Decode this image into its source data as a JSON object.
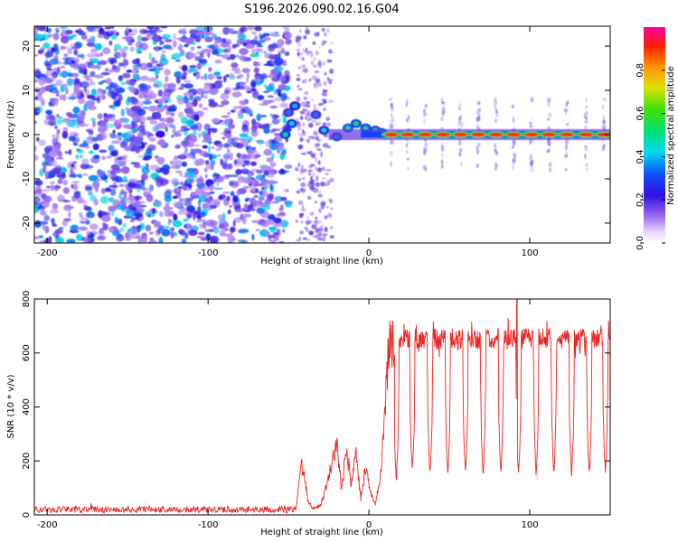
{
  "figure_title": "S196.2026.090.02.16.G04",
  "chart_data": [
    {
      "type": "heatmap",
      "xlabel": "Height of straight line (km)",
      "ylabel": "Frequency (Hz)",
      "xlim": [
        -208,
        150
      ],
      "ylim": [
        -24.5,
        24.5
      ],
      "xticks": [
        -200,
        -100,
        0,
        100
      ],
      "yticks": [
        -20,
        -10,
        0,
        10,
        20
      ],
      "colorbar": {
        "label": "Normalized spectral amplitude",
        "range": [
          0.0,
          1.0
        ],
        "ticks": [
          0.0,
          0.2,
          0.4,
          0.6,
          0.8
        ],
        "tick_labels": [
          "0.0",
          "0.2",
          "0.4",
          "0.6",
          "0.8"
        ],
        "colormap": "rainbow: white → violet → blue → cyan → green → yellow → orange → red → magenta"
      },
      "signal_line": {
        "frequency_hz": 0,
        "start_km": -25,
        "end_km": 150,
        "pulse_centers_km": [
          14,
          24,
          35,
          46,
          57,
          68,
          79,
          90,
          101,
          112,
          123,
          135,
          146
        ],
        "pulse_amplitude": 0.9
      },
      "noise_region": {
        "x_range": [
          -208,
          -50
        ],
        "y_range": [
          -24.5,
          24.5
        ],
        "amplitude": [
          0.1,
          0.45
        ]
      },
      "transition_features": [
        {
          "x": -50,
          "y": 5,
          "v": 0.35
        },
        {
          "x": -48,
          "y": 2.5,
          "v": 0.45
        },
        {
          "x": -52,
          "y": 0,
          "v": 0.5
        },
        {
          "x": -46,
          "y": 6.5,
          "v": 0.4
        },
        {
          "x": -33,
          "y": 4.5,
          "v": 0.35
        },
        {
          "x": -28,
          "y": 1,
          "v": 0.45
        },
        {
          "x": -20,
          "y": -0.5,
          "v": 0.5
        },
        {
          "x": -13,
          "y": 1.5,
          "v": 0.55
        },
        {
          "x": -8,
          "y": 2.5,
          "v": 0.55
        },
        {
          "x": -2,
          "y": 1.5,
          "v": 0.5
        },
        {
          "x": 4,
          "y": 1.0,
          "v": 0.5
        },
        {
          "x": 8,
          "y": 0.5,
          "v": 0.55
        }
      ],
      "grid": false
    },
    {
      "type": "line",
      "xlabel": "Height of straight line (km)",
      "ylabel": "SNR (10 * v/v)",
      "xlim": [
        -208,
        150
      ],
      "ylim": [
        0,
        800
      ],
      "xticks": [
        -200,
        -100,
        0,
        100
      ],
      "yticks": [
        0,
        200,
        400,
        600,
        800
      ],
      "line_color": "#ee2222",
      "grid": false,
      "baseline_segment": {
        "x_range": [
          -208,
          -45
        ],
        "snr_mean": 20,
        "snr_noise": 12
      },
      "series_profile": [
        {
          "x": -208,
          "y": 20
        },
        {
          "x": -45,
          "y": 20
        },
        {
          "x": -42,
          "y": 180
        },
        {
          "x": -40,
          "y": 150
        },
        {
          "x": -38,
          "y": 50
        },
        {
          "x": -35,
          "y": 25
        },
        {
          "x": -30,
          "y": 35
        },
        {
          "x": -26,
          "y": 120
        },
        {
          "x": -23,
          "y": 200
        },
        {
          "x": -20,
          "y": 270
        },
        {
          "x": -17,
          "y": 90
        },
        {
          "x": -14,
          "y": 240
        },
        {
          "x": -11,
          "y": 120
        },
        {
          "x": -8,
          "y": 230
        },
        {
          "x": -5,
          "y": 60
        },
        {
          "x": -2,
          "y": 180
        },
        {
          "x": 1,
          "y": 80
        },
        {
          "x": 4,
          "y": 40
        },
        {
          "x": 7,
          "y": 140
        },
        {
          "x": 10,
          "y": 380
        },
        {
          "x": 12,
          "y": 620
        },
        {
          "x": 16,
          "y": 640
        }
      ],
      "plateau": {
        "x_range": [
          16,
          150
        ],
        "snr_mean": 650,
        "snr_noise": 40
      },
      "dips": [
        {
          "x": 17,
          "y": 120
        },
        {
          "x": 27,
          "y": 160
        },
        {
          "x": 38,
          "y": 150
        },
        {
          "x": 49,
          "y": 150
        },
        {
          "x": 60,
          "y": 150
        },
        {
          "x": 71,
          "y": 150
        },
        {
          "x": 82,
          "y": 150
        },
        {
          "x": 93,
          "y": 150
        },
        {
          "x": 104,
          "y": 150
        },
        {
          "x": 115,
          "y": 150
        },
        {
          "x": 126,
          "y": 150
        },
        {
          "x": 137,
          "y": 150
        },
        {
          "x": 147,
          "y": 160
        }
      ],
      "max_peak": {
        "x": 92,
        "y": 800
      }
    }
  ]
}
